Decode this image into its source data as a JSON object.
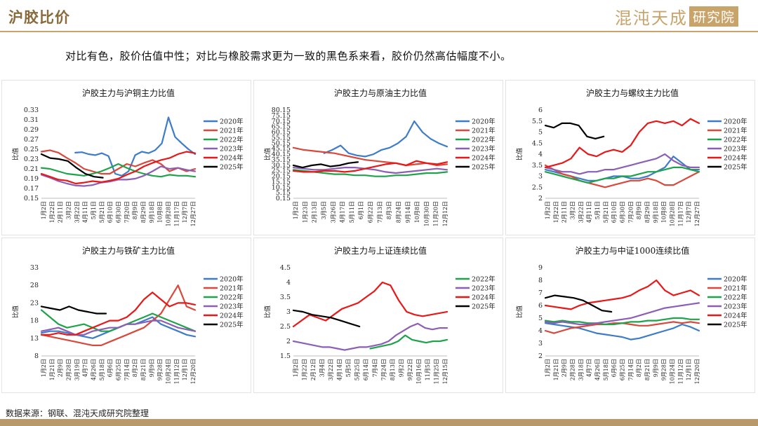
{
  "header": {
    "title": "沪胶比价",
    "brand_name": "混沌天成",
    "brand_box": "研究院"
  },
  "subtitle": "对比有色，胶价估值中性；对比与橡胶需求更为一致的黑色系来看，胶价仍然高估幅度不小。",
  "footer": {
    "source": "数据来源：钢联、混沌天成研究院整理"
  },
  "colors": {
    "2020年": "#3d7cc9",
    "2021年": "#d9483b",
    "2022年": "#1fa34a",
    "2023年": "#8c5fb5",
    "2024年": "#e81818",
    "2025年": "#000000"
  },
  "chart_data": [
    {
      "type": "line",
      "title": "沪胶主力与沪铜主力比值",
      "ylabel": "比值",
      "ylim": [
        0.15,
        0.33
      ],
      "yticks": [
        "0.33",
        "0.31",
        "0.29",
        "0.27",
        "0.25",
        "0.23",
        "0.21",
        "0.19",
        "0.17",
        "0.15"
      ],
      "xticks": [
        "1月2日",
        "1月22日",
        "2月11日",
        "3月2日",
        "3月22日",
        "4月11日",
        "5月1日",
        "5月21日",
        "6月10日",
        "6月30日",
        "7月20日",
        "8月9日",
        "8月29日",
        "9月18日",
        "10月8日",
        "10月28日",
        "11月17日",
        "12月7日",
        "12月27日"
      ],
      "series": [
        {
          "name": "2020年",
          "start": 0.22,
          "end": 1.0,
          "values": [
            0.243,
            0.244,
            0.24,
            0.238,
            0.242,
            0.236,
            0.2,
            0.196,
            0.205,
            0.238,
            0.245,
            0.242,
            0.248,
            0.262,
            0.315,
            0.275,
            0.262,
            0.25,
            0.24
          ]
        },
        {
          "name": "2021年",
          "start": 0.0,
          "end": 1.0,
          "values": [
            0.245,
            0.248,
            0.243,
            0.232,
            0.222,
            0.21,
            0.205,
            0.2,
            0.2,
            0.21,
            0.22,
            0.215,
            0.222,
            0.228,
            0.22,
            0.205,
            0.212,
            0.205,
            0.21
          ]
        },
        {
          "name": "2022年",
          "start": 0.0,
          "end": 1.0,
          "values": [
            0.212,
            0.21,
            0.205,
            0.2,
            0.198,
            0.196,
            0.2,
            0.205,
            0.212,
            0.22,
            0.212,
            0.205,
            0.2,
            0.196,
            0.194,
            0.198,
            0.196,
            0.196,
            0.194
          ]
        },
        {
          "name": "2023年",
          "start": 0.0,
          "end": 1.0,
          "values": [
            0.198,
            0.192,
            0.185,
            0.18,
            0.176,
            0.175,
            0.177,
            0.182,
            0.184,
            0.188,
            0.188,
            0.19,
            0.196,
            0.205,
            0.215,
            0.21,
            0.212,
            0.208,
            0.205
          ]
        },
        {
          "name": "2024年",
          "start": 0.0,
          "end": 1.0,
          "values": [
            0.2,
            0.194,
            0.188,
            0.186,
            0.18,
            0.182,
            0.185,
            0.183,
            0.186,
            0.19,
            0.198,
            0.205,
            0.215,
            0.222,
            0.228,
            0.232,
            0.24,
            0.245,
            0.242
          ]
        },
        {
          "name": "2025年",
          "start": 0.0,
          "end": 0.4,
          "values": [
            0.24,
            0.232,
            0.23,
            0.226,
            0.212,
            0.2,
            0.194,
            0.192
          ]
        }
      ]
    },
    {
      "type": "line",
      "title": "沪胶主力与原油主力比值",
      "ylabel": "比值",
      "ylim": [
        0.15,
        80.15
      ],
      "yticks": [
        "80.15",
        "75.15",
        "70.15",
        "65.15",
        "60.15",
        "55.15",
        "50.15",
        "45.15",
        "40.15",
        "35.15",
        "30.15",
        "25.15",
        "20.15",
        "15.15",
        "10.15",
        "5.15",
        "0.15"
      ],
      "xticks": [
        "1月2日",
        "1月23日",
        "2月13日",
        "3月5日",
        "3月26日",
        "4月17日",
        "5月11日",
        "6月1日",
        "6月22日",
        "7月13日",
        "8月3日",
        "8月24日",
        "9月14日",
        "10月8日",
        "10月30日",
        "11月20日",
        "12月12日"
      ],
      "series": [
        {
          "name": "2020年",
          "start": 0.2,
          "end": 1.0,
          "values": [
            41,
            44,
            48,
            41,
            39,
            38,
            40,
            44,
            46,
            50,
            56,
            70,
            60,
            54,
            50,
            47
          ]
        },
        {
          "name": "2021年",
          "start": 0.0,
          "end": 1.0,
          "values": [
            46,
            44,
            43,
            42,
            41,
            39,
            37,
            35,
            34,
            33,
            32,
            30,
            31,
            32,
            30,
            31
          ]
        },
        {
          "name": "2022年",
          "start": 0.0,
          "end": 1.0,
          "values": [
            26,
            25,
            24,
            23,
            22,
            22,
            21,
            21,
            20,
            20,
            21,
            21,
            22,
            23,
            23,
            24
          ]
        },
        {
          "name": "2023年",
          "start": 0.0,
          "end": 1.0,
          "values": [
            28,
            27,
            26,
            26,
            27,
            28,
            28,
            27,
            26,
            24,
            23,
            24,
            25,
            26,
            27,
            26
          ]
        },
        {
          "name": "2024年",
          "start": 0.0,
          "end": 1.0,
          "values": [
            25,
            24,
            24,
            25,
            25,
            24,
            25,
            27,
            29,
            31,
            32,
            30,
            34,
            32,
            31,
            33
          ]
        },
        {
          "name": "2025年",
          "start": 0.0,
          "end": 0.42,
          "values": [
            30,
            28,
            30,
            31,
            29,
            30,
            32,
            33
          ]
        }
      ]
    },
    {
      "type": "line",
      "title": "沪胶主力与螺纹主力比值",
      "ylabel": "比值",
      "ylim": [
        2,
        6
      ],
      "yticks": [
        "6",
        "5.5",
        "5",
        "4.5",
        "4",
        "3.5",
        "3",
        "2.5",
        "2"
      ],
      "xticks": [
        "1月2日",
        "1月22日",
        "2月11日",
        "3月2日",
        "3月22日",
        "4月11日",
        "5月1日",
        "5月21日",
        "6月10日",
        "6月30日",
        "7月20日",
        "8月9日",
        "8月29日",
        "9月18日",
        "10月8日",
        "10月28日",
        "11月17日",
        "12月7日",
        "12月27日"
      ],
      "series": [
        {
          "name": "2020年",
          "start": 0.0,
          "end": 1.0,
          "values": [
            3.3,
            3.2,
            3.1,
            3.0,
            2.9,
            2.8,
            2.8,
            2.9,
            3.0,
            3.0,
            2.9,
            2.9,
            3.0,
            3.2,
            3.4,
            3.9,
            3.6,
            3.3,
            3.3
          ]
        },
        {
          "name": "2021年",
          "start": 0.0,
          "end": 1.0,
          "values": [
            3.5,
            3.3,
            3.1,
            3.0,
            2.8,
            2.7,
            2.6,
            2.5,
            2.6,
            2.7,
            2.8,
            2.8,
            2.9,
            2.8,
            2.6,
            2.6,
            2.8,
            3.0,
            3.2
          ]
        },
        {
          "name": "2022年",
          "start": 0.0,
          "end": 1.0,
          "values": [
            3.2,
            3.1,
            3.0,
            2.9,
            2.8,
            2.7,
            2.8,
            2.9,
            2.9,
            3.0,
            3.0,
            3.1,
            3.2,
            3.2,
            3.3,
            3.4,
            3.4,
            3.3,
            3.2
          ]
        },
        {
          "name": "2023年",
          "start": 0.0,
          "end": 1.0,
          "values": [
            3.4,
            3.3,
            3.2,
            3.2,
            3.1,
            3.2,
            3.2,
            3.3,
            3.3,
            3.4,
            3.5,
            3.6,
            3.7,
            3.8,
            4.0,
            3.7,
            3.5,
            3.4,
            3.4
          ]
        },
        {
          "name": "2024年",
          "start": 0.0,
          "end": 1.0,
          "values": [
            3.4,
            3.5,
            3.6,
            3.8,
            4.3,
            4.0,
            3.9,
            4.1,
            4.2,
            4.1,
            4.4,
            5.0,
            5.4,
            5.5,
            5.4,
            5.5,
            5.3,
            5.6,
            5.4
          ]
        },
        {
          "name": "2025年",
          "start": 0.0,
          "end": 0.38,
          "values": [
            5.3,
            5.2,
            5.4,
            5.4,
            5.3,
            4.8,
            4.7,
            4.8
          ]
        }
      ]
    },
    {
      "type": "line",
      "title": "沪胶主力与铁矿主力比值",
      "ylabel": "比值",
      "ylim": [
        8,
        33
      ],
      "yticks": [
        "33",
        "28",
        "23",
        "18",
        "13",
        "8"
      ],
      "xticks": [
        "1月2日",
        "1月21日",
        "2月9日",
        "2月28日",
        "3月19日",
        "4月7日",
        "4月26日",
        "5月18日",
        "6月6日",
        "6月25日",
        "7月14日",
        "8月2日",
        "8月21日",
        "9月9日",
        "9月28日",
        "10月24日",
        "11月12日",
        "12月1日",
        "12月20日"
      ],
      "series": [
        {
          "name": "2020年",
          "start": 0.0,
          "end": 1.0,
          "values": [
            14.5,
            15,
            15,
            14.5,
            14,
            13.5,
            13,
            14,
            15,
            16,
            17,
            17,
            18,
            19,
            17,
            16,
            15,
            14,
            13.5
          ]
        },
        {
          "name": "2021年",
          "start": 0.0,
          "end": 1.0,
          "values": [
            14,
            13.5,
            13,
            12.5,
            12,
            11.5,
            11,
            11,
            12,
            13,
            14,
            15,
            16,
            18,
            20,
            24,
            28,
            22,
            21
          ]
        },
        {
          "name": "2022年",
          "start": 0.0,
          "end": 1.0,
          "values": [
            21,
            19,
            17,
            16,
            16.5,
            17,
            16,
            15,
            15,
            16,
            17,
            18,
            19,
            20,
            19,
            18,
            17,
            16,
            15
          ]
        },
        {
          "name": "2023年",
          "start": 0.0,
          "end": 1.0,
          "values": [
            15,
            15.5,
            16,
            15,
            14,
            14,
            15,
            15.5,
            16,
            16,
            17,
            17,
            17.5,
            18,
            18,
            17,
            16,
            15.5,
            15
          ]
        },
        {
          "name": "2024年",
          "start": 0.0,
          "end": 1.0,
          "values": [
            14,
            14,
            14.5,
            14,
            14,
            15,
            16,
            17,
            18,
            18,
            19,
            21,
            24,
            26,
            24,
            22,
            23,
            23,
            22.5
          ]
        },
        {
          "name": "2025年",
          "start": 0.0,
          "end": 0.42,
          "values": [
            22,
            21.5,
            21,
            22,
            21,
            20.5,
            20,
            20
          ]
        }
      ]
    },
    {
      "type": "line",
      "title": "沪胶主力与上证连续比值",
      "ylabel": "比值",
      "ylim": [
        1.5,
        4.5
      ],
      "yticks": [
        "4.5",
        "4",
        "3.5",
        "3",
        "2.5",
        "2",
        "1.5"
      ],
      "xticks": [
        "1月2日",
        "1月22日",
        "2月12日",
        "3月4日",
        "3月22日",
        "4月14日",
        "5月5日",
        "5月25日",
        "6月14日",
        "7月4日",
        "7月24日",
        "8月13日",
        "9月2日",
        "9月22日",
        "10月16日",
        "11月5日",
        "11月25日",
        "12月15日"
      ],
      "series": [
        {
          "name": "2022年",
          "start": 0.5,
          "end": 1.0,
          "values": [
            1.75,
            1.8,
            1.85,
            1.9,
            2.0,
            2.2,
            2.05,
            2.0,
            1.95,
            2.0,
            2.0,
            2.05
          ]
        },
        {
          "name": "2023年",
          "start": 0.0,
          "end": 1.0,
          "values": [
            2.0,
            1.95,
            1.9,
            1.85,
            1.8,
            1.8,
            1.75,
            1.7,
            1.75,
            1.8,
            1.8,
            1.85,
            1.9,
            2.0,
            2.2,
            2.35,
            2.5,
            2.6,
            2.45,
            2.4,
            2.45,
            2.45
          ]
        },
        {
          "name": "2024年",
          "start": 0.0,
          "end": 1.0,
          "values": [
            2.5,
            2.7,
            2.9,
            2.8,
            2.7,
            2.9,
            3.1,
            3.2,
            3.3,
            3.5,
            3.7,
            4.0,
            3.9,
            3.4,
            3.0,
            2.9,
            2.85,
            2.9,
            2.95,
            3.0
          ]
        },
        {
          "name": "2025年",
          "start": 0.0,
          "end": 0.43,
          "values": [
            3.05,
            3.0,
            2.9,
            2.85,
            2.8,
            2.7,
            2.6,
            2.5
          ]
        }
      ]
    },
    {
      "type": "line",
      "title": "沪胶主力与中证1000连续比值",
      "ylabel": "比值",
      "ylim": [
        2,
        9
      ],
      "yticks": [
        "9",
        "8",
        "7",
        "6",
        "5",
        "4",
        "3",
        "2"
      ],
      "xticks": [
        "1月2日",
        "1月21日",
        "2月9日",
        "2月28日",
        "3月18日",
        "4月7日",
        "4月26日",
        "5月18日",
        "6月6日",
        "6月25日",
        "7月14日",
        "8月2日",
        "8月21日",
        "9月9日",
        "9月28日",
        "10月24日",
        "11月12日",
        "12月1日",
        "12月20日"
      ],
      "series": [
        {
          "name": "2020年",
          "start": 0.0,
          "end": 1.0,
          "values": [
            4.6,
            4.5,
            4.4,
            4.3,
            4.2,
            4.0,
            3.8,
            3.7,
            3.6,
            3.5,
            3.3,
            3.4,
            3.6,
            3.8,
            4.0,
            4.2,
            4.5,
            4.3,
            4.0
          ]
        },
        {
          "name": "2021年",
          "start": 0.0,
          "end": 1.0,
          "values": [
            4.0,
            3.8,
            4.0,
            4.2,
            4.3,
            4.4,
            4.5,
            4.5,
            4.6,
            4.6,
            4.5,
            4.4,
            4.4,
            4.5,
            4.6,
            4.7,
            4.6,
            4.7,
            4.6
          ]
        },
        {
          "name": "2022年",
          "start": 0.0,
          "end": 1.0,
          "values": [
            4.8,
            4.7,
            4.8,
            4.7,
            4.7,
            4.6,
            4.6,
            4.5,
            4.5,
            4.6,
            4.7,
            4.7,
            4.8,
            4.8,
            4.9,
            5.0,
            5.0,
            4.9,
            4.9
          ]
        },
        {
          "name": "2023年",
          "start": 0.0,
          "end": 1.0,
          "values": [
            4.7,
            4.6,
            4.7,
            4.6,
            4.5,
            4.5,
            4.6,
            4.7,
            4.8,
            4.9,
            5.0,
            5.2,
            5.4,
            5.6,
            5.8,
            5.9,
            6.0,
            6.1,
            6.2
          ]
        },
        {
          "name": "2024年",
          "start": 0.0,
          "end": 1.0,
          "values": [
            6.0,
            5.9,
            5.8,
            5.7,
            6.0,
            6.2,
            6.3,
            6.4,
            6.5,
            6.6,
            6.8,
            7.2,
            7.5,
            8.0,
            7.2,
            6.8,
            7.0,
            7.2,
            6.8
          ]
        },
        {
          "name": "2025年",
          "start": 0.0,
          "end": 0.43,
          "values": [
            6.6,
            6.8,
            6.7,
            6.6,
            6.4,
            6.0,
            5.6,
            5.5
          ]
        }
      ]
    }
  ]
}
